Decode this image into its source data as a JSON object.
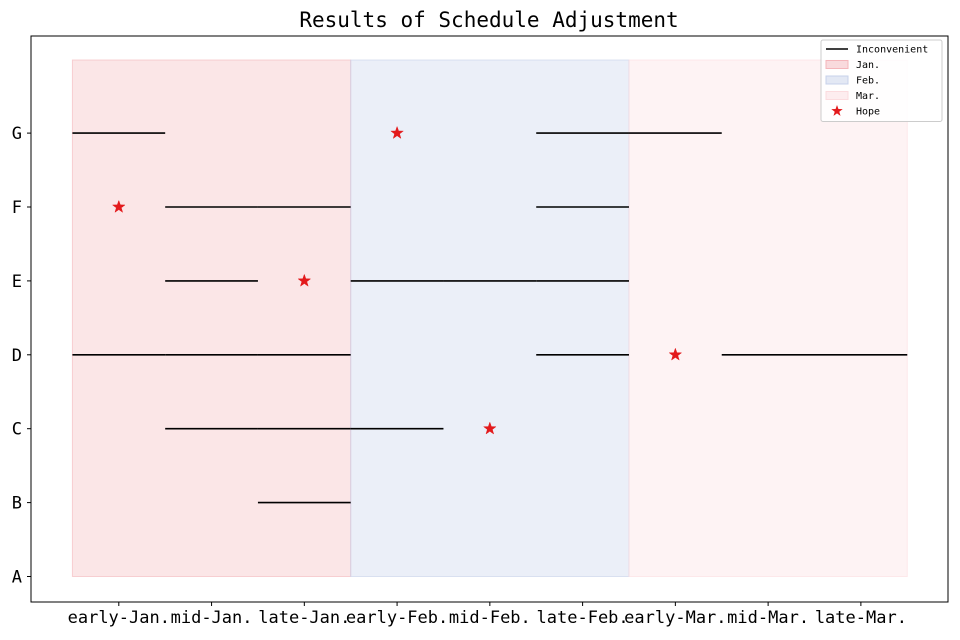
{
  "chart_data": {
    "type": "gantt",
    "title": "Results of Schedule Adjustment",
    "xlabel": "",
    "ylabel": "",
    "categories": [
      "early-Jan.",
      "mid-Jan.",
      "late-Jan.",
      "early-Feb.",
      "mid-Feb.",
      "late-Feb.",
      "early-Mar.",
      "mid-Mar.",
      "late-Mar."
    ],
    "people": [
      "A",
      "B",
      "C",
      "D",
      "E",
      "F",
      "G"
    ],
    "months": [
      {
        "name": "Jan.",
        "start": "early-Jan.",
        "end": "late-Jan.",
        "color": "#f4b6bb",
        "opacity": 0.35
      },
      {
        "name": "Feb.",
        "start": "early-Feb.",
        "end": "late-Feb.",
        "color": "#c7d1ea",
        "opacity": 0.35
      },
      {
        "name": "Mar.",
        "start": "early-Mar.",
        "end": "late-Mar.",
        "color": "#fbdcdf",
        "opacity": 0.35
      }
    ],
    "inconvenient": [
      {
        "person": "B",
        "periods": [
          "late-Jan."
        ]
      },
      {
        "person": "C",
        "periods": [
          "mid-Jan.",
          "late-Jan.",
          "early-Feb."
        ]
      },
      {
        "person": "D",
        "periods": [
          "early-Jan.",
          "mid-Jan.",
          "late-Jan.",
          "late-Feb.",
          "mid-Mar.",
          "late-Mar."
        ]
      },
      {
        "person": "E",
        "periods": [
          "mid-Jan.",
          "early-Feb.",
          "mid-Feb.",
          "late-Feb."
        ]
      },
      {
        "person": "F",
        "periods": [
          "mid-Jan.",
          "late-Jan.",
          "late-Feb."
        ]
      },
      {
        "person": "G",
        "periods": [
          "early-Jan.",
          "late-Feb.",
          "early-Mar."
        ]
      }
    ],
    "hope": [
      {
        "person": "C",
        "period": "mid-Feb."
      },
      {
        "person": "D",
        "period": "early-Mar."
      },
      {
        "person": "E",
        "period": "late-Jan."
      },
      {
        "person": "F",
        "period": "early-Jan."
      },
      {
        "person": "G",
        "period": "early-Feb."
      }
    ],
    "legend": {
      "position": "upper-right",
      "entries": [
        {
          "label": "Inconvenient",
          "kind": "line",
          "color": "#000000"
        },
        {
          "label": "Jan.",
          "kind": "patch",
          "color": "#f4b6bb"
        },
        {
          "label": "Feb.",
          "kind": "patch",
          "color": "#c7d1ea"
        },
        {
          "label": "Mar.",
          "kind": "patch",
          "color": "#fbdcdf"
        },
        {
          "label": "Hope",
          "kind": "star",
          "color": "#e31a1c"
        }
      ]
    },
    "colors": {
      "inconvenient": "#000000",
      "hope": "#e31a1c"
    },
    "grid": false
  }
}
